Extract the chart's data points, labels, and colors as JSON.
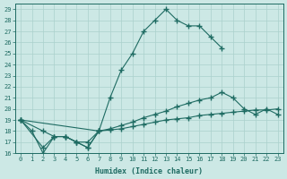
{
  "xlabel": "Humidex (Indice chaleur)",
  "bg_color": "#cce8e5",
  "line_color": "#1e6b62",
  "grid_color": "#aad0cc",
  "xlim": [
    -0.5,
    23.5
  ],
  "ylim": [
    16,
    29.5
  ],
  "xticks": [
    0,
    1,
    2,
    3,
    4,
    5,
    6,
    7,
    8,
    9,
    10,
    11,
    12,
    13,
    14,
    15,
    16,
    17,
    18,
    19,
    20,
    21,
    22,
    23
  ],
  "yticks": [
    16,
    17,
    18,
    19,
    20,
    21,
    22,
    23,
    24,
    25,
    26,
    27,
    28,
    29
  ],
  "line1_x": [
    0,
    1,
    2,
    3,
    4,
    5,
    6,
    7,
    8,
    9,
    10,
    11,
    12,
    13,
    14,
    15,
    16,
    17,
    18
  ],
  "line1_y": [
    19,
    18,
    16,
    17.5,
    17.5,
    17,
    16.5,
    18,
    21,
    23.5,
    25,
    27,
    28,
    29,
    28,
    27.5,
    27.5,
    26.5,
    25.5
  ],
  "line2_x": [
    0,
    2,
    3,
    4,
    5,
    6,
    7
  ],
  "line2_y": [
    19,
    16.5,
    17.5,
    17.5,
    17,
    16.5,
    18
  ],
  "line3_x": [
    0,
    7,
    8,
    9,
    10,
    11,
    12,
    13,
    14,
    15,
    16,
    17,
    18,
    19,
    20,
    21,
    22,
    23
  ],
  "line3_y": [
    19,
    18,
    18.2,
    18.5,
    18.8,
    19.2,
    19.5,
    19.8,
    20.2,
    20.5,
    20.8,
    21,
    21.5,
    21,
    20,
    19.5,
    20,
    19.5
  ],
  "line4_x": [
    0,
    2,
    3,
    4,
    5,
    6,
    7,
    8,
    9,
    10,
    11,
    12,
    13,
    14,
    15,
    16,
    17,
    18,
    19,
    20,
    21,
    22,
    23
  ],
  "line4_y": [
    19,
    18,
    17.5,
    17.5,
    17,
    17,
    18,
    18.1,
    18.2,
    18.4,
    18.6,
    18.8,
    19,
    19.1,
    19.2,
    19.4,
    19.5,
    19.6,
    19.7,
    19.8,
    19.9,
    19.9,
    20
  ]
}
